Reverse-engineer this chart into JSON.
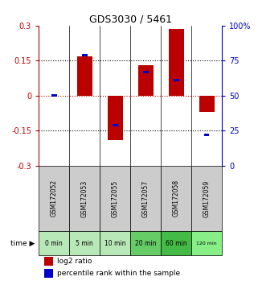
{
  "title": "GDS3030 / 5461",
  "samples": [
    "GSM172052",
    "GSM172053",
    "GSM172055",
    "GSM172057",
    "GSM172058",
    "GSM172059"
  ],
  "times": [
    "0 min",
    "5 min",
    "10 min",
    "20 min",
    "60 min",
    "120 min"
  ],
  "log2_ratio": [
    0.0,
    0.17,
    -0.19,
    0.13,
    0.285,
    -0.07
  ],
  "percentile": [
    50,
    79,
    29,
    67,
    61,
    22
  ],
  "ylim_left": [
    -0.3,
    0.3
  ],
  "ylim_right": [
    0,
    100
  ],
  "yticks_left": [
    -0.3,
    -0.15,
    0,
    0.15,
    0.3
  ],
  "ytick_labels_left": [
    "-0.3",
    "-0.15",
    "0",
    "0.15",
    "0.3"
  ],
  "yticks_right": [
    0,
    25,
    50,
    75,
    100
  ],
  "ytick_labels_right": [
    "0",
    "25",
    "50",
    "75",
    "100%"
  ],
  "red_color": "#bb0000",
  "blue_color": "#0000cc",
  "bar_width": 0.5,
  "blue_bar_size": 0.18,
  "zero_line_color": "#cc0000",
  "dotted_color": "#000000",
  "time_colors": [
    "#aaddaa",
    "#aaddaa",
    "#aaddaa",
    "#55cc55",
    "#33bb33",
    "#88ee88"
  ],
  "sample_bg": "#cccccc",
  "legend_red_label": "log2 ratio",
  "legend_blue_label": "percentile rank within the sample"
}
